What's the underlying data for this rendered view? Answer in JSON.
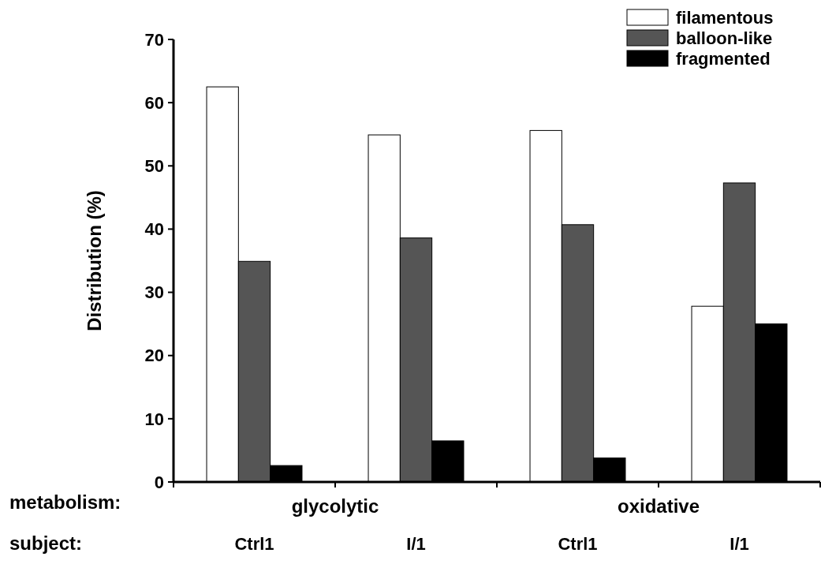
{
  "chart_data": {
    "type": "bar",
    "ylabel": "Distribution (%)",
    "categories": [
      "Ctrl1",
      "I/1",
      "Ctrl1",
      "I/1"
    ],
    "series": [
      {
        "name": "filamentous",
        "color": "#ffffff",
        "values": [
          62.5,
          54.9,
          55.6,
          27.8
        ]
      },
      {
        "name": "balloon-like",
        "color": "#555555",
        "values": [
          34.9,
          38.6,
          40.7,
          47.3
        ]
      },
      {
        "name": "fragmented",
        "color": "#000000",
        "values": [
          2.6,
          6.5,
          3.8,
          25.0
        ]
      }
    ],
    "ylim": [
      0,
      70
    ],
    "yticks": [
      0,
      10,
      20,
      30,
      40,
      50,
      60,
      70
    ],
    "grid": false,
    "legend": "top right",
    "annotations": [
      "metabolism:",
      "glycolytic",
      "oxidative",
      "subject:"
    ]
  }
}
